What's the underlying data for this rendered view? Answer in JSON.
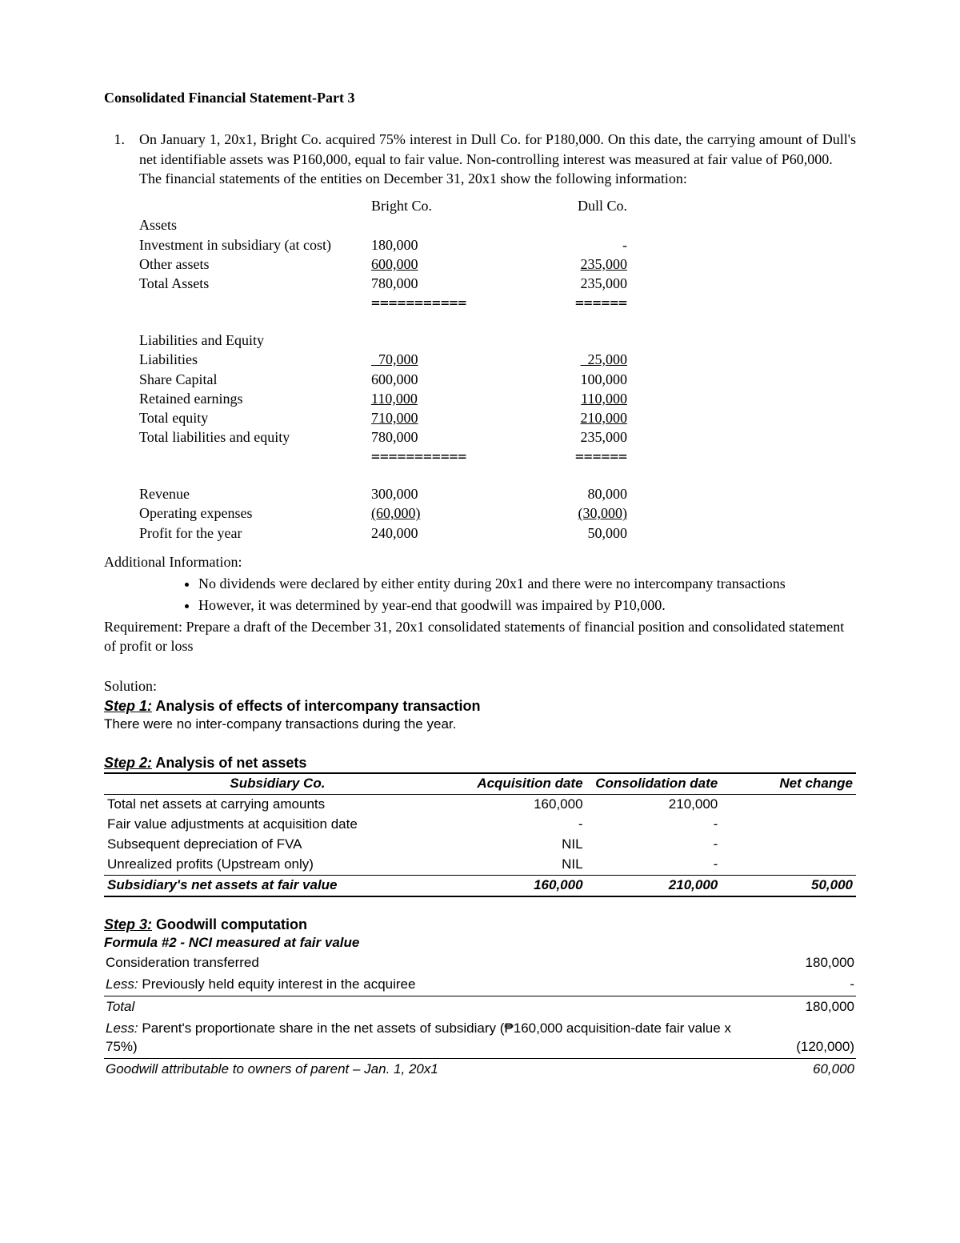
{
  "title": "Consolidated Financial Statement-Part 3",
  "problem_num": "1.",
  "p1": "On January 1, 20x1, Bright Co. acquired 75% interest in Dull Co. for P180,000. On this date, the carrying amount of Dull's net identifiable assets was P160,000, equal to fair value. Non-controlling interest was measured at fair value of P60,000.",
  "p2": "The financial statements of the entities on December 31, 20x1 show the following information:",
  "companies": {
    "bright": "Bright Co.",
    "dull": "Dull Co."
  },
  "fs": {
    "assets_h": "Assets",
    "r1": {
      "l": "Investment in subsidiary (at cost)",
      "b": "180,000",
      "d": "-"
    },
    "r2": {
      "l": "Other assets",
      "b": "600,000",
      "d": "235,000"
    },
    "r3": {
      "l": "Total Assets",
      "b": "780,000",
      "d": "235,000"
    },
    "liab_h": "Liabilities and Equity",
    "r4": {
      "l": "Liabilities",
      "b": "  70,000",
      "d": "  25,000"
    },
    "r5": {
      "l": "Share Capital",
      "b": "600,000",
      "d": "100,000"
    },
    "r6": {
      "l": "Retained earnings",
      "b": "110,000",
      "d": "110,000"
    },
    "r7": {
      "l": "Total equity",
      "b": "710,000",
      "d": "210,000"
    },
    "r8": {
      "l": "Total liabilities and equity",
      "b": "780,000",
      "d": "235,000"
    },
    "r9": {
      "l": "Revenue",
      "b": "300,000",
      "d": "80,000"
    },
    "r10": {
      "l": "Operating expenses",
      "b": "(60,000)",
      "d": "(30,000)"
    },
    "r11": {
      "l": "Profit for the year",
      "b": "240,000",
      "d": "50,000"
    }
  },
  "addl_head": "Additional Information:",
  "bullet1": "No dividends were declared by either entity during 20x1 and there were no intercompany transactions",
  "bullet2": "However, it was determined by year-end that goodwill was impaired by P10,000.",
  "requirement": "Requirement: Prepare a draft of the December 31, 20x1 consolidated statements of financial position and consolidated statement of profit or loss",
  "solution_h": "Solution:",
  "step1_lbl": "Step 1:",
  "step1_title": " Analysis of effects of intercompany transaction",
  "step1_text": "There were no inter-company transactions during the year.",
  "step2_lbl": "Step 2:",
  "step2_title": " Analysis of net assets",
  "t2": {
    "h1": "Subsidiary Co.",
    "h2": "Acquisition date",
    "h3": "Consolidation date",
    "h4": "Net change",
    "r1": {
      "l": "Total net assets at carrying amounts",
      "a": "160,000",
      "c": "210,000",
      "n": ""
    },
    "r2": {
      "l": "Fair value adjustments at acquisition date",
      "a": "-",
      "c": "-",
      "n": ""
    },
    "r3": {
      "l": "Subsequent depreciation of FVA",
      "a": "NIL",
      "c": "-",
      "n": ""
    },
    "r4": {
      "l": "Unrealized profits (Upstream only)",
      "a": "NIL",
      "c": "-",
      "n": ""
    },
    "r5": {
      "l": "Subsidiary's net assets at fair value",
      "a": "160,000",
      "c": "210,000",
      "n": "50,000"
    }
  },
  "step3_lbl": "Step 3:",
  "step3_title": " Goodwill computation",
  "formula": "Formula #2 - NCI measured at fair value",
  "t3": {
    "r1": {
      "l": "Consideration transferred",
      "v": "180,000"
    },
    "r2": {
      "pre": "Less:",
      "l": " Previously held equity interest in the acquiree",
      "v": "-"
    },
    "r3": {
      "l": "Total",
      "v": "180,000"
    },
    "r4": {
      "pre": "Less:",
      "l": " Parent's proportionate share in the net assets of subsidiary (₱160,000 acquisition-date fair value x 75%)",
      "v": "(120,000)"
    },
    "r5": {
      "l": "Goodwill attributable to owners of parent – Jan. 1, 20x1",
      "v": "60,000"
    }
  }
}
